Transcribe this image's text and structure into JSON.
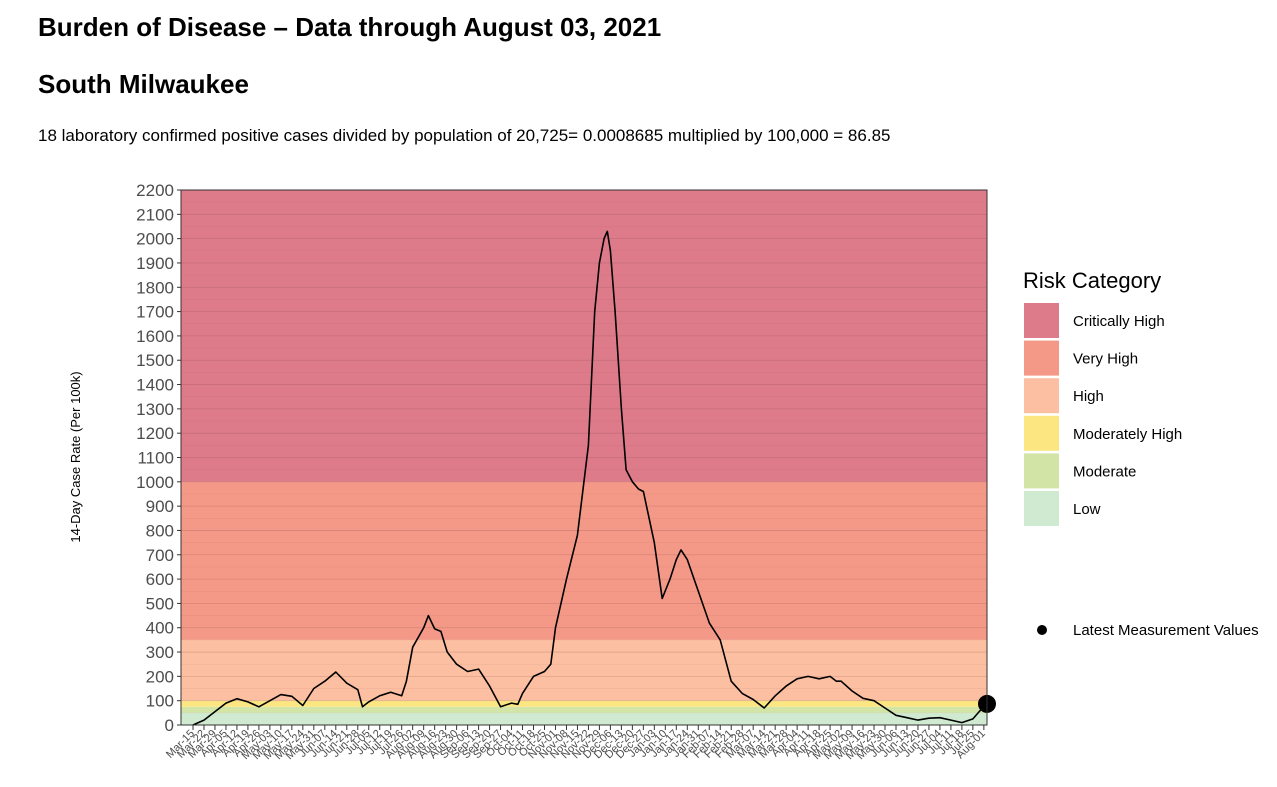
{
  "page": {
    "title": "Burden of Disease – Data through August 03, 2021",
    "subtitle": "South Milwaukee",
    "formula": "18 laboratory confirmed positive cases divided by population of 20,725= 0.0008685 multiplied by 100,000 = 86.85"
  },
  "chart_data": {
    "type": "line",
    "title": "",
    "xlabel": "",
    "ylabel": "14-Day Case Rate (Per 100k)",
    "ylim": [
      0,
      2200
    ],
    "yticks": [
      0,
      100,
      200,
      300,
      400,
      500,
      600,
      700,
      800,
      900,
      1000,
      1100,
      1200,
      1300,
      1400,
      1500,
      1600,
      1700,
      1800,
      1900,
      2000,
      2100,
      2200
    ],
    "grid": true,
    "date_range": [
      "2020-03-15",
      "2021-08-03"
    ],
    "xtick_labels": [
      "Mar-15",
      "Mar-22",
      "Mar-29",
      "Apr-05",
      "Apr-12",
      "Apr-19",
      "Apr-26",
      "May-03",
      "May-10",
      "May-17",
      "May-24",
      "May-31",
      "Jun-07",
      "Jun-14",
      "Jun-21",
      "Jun-28",
      "Jul-05",
      "Jul-12",
      "Jul-19",
      "Jul-26",
      "Aug-02",
      "Aug-09",
      "Aug-16",
      "Aug-23",
      "Aug-30",
      "Sep-06",
      "Sep-13",
      "Sep-20",
      "Sep-27",
      "Oct-04",
      "Oct-11",
      "Oct-18",
      "Oct-25",
      "Nov-01",
      "Nov-08",
      "Nov-15",
      "Nov-22",
      "Nov-29",
      "Dec-06",
      "Dec-13",
      "Dec-20",
      "Dec-27",
      "Jan-03",
      "Jan-10",
      "Jan-17",
      "Jan-24",
      "Jan-31",
      "Feb-07",
      "Feb-14",
      "Feb-21",
      "Feb-28",
      "Mar-07",
      "Mar-14",
      "Mar-21",
      "Mar-28",
      "Apr-04",
      "Apr-11",
      "Apr-18",
      "Apr-25",
      "May-02",
      "May-09",
      "May-16",
      "May-23",
      "May-30",
      "Jun-06",
      "Jun-13",
      "Jun-20",
      "Jun-27",
      "Jul-04",
      "Jul-11",
      "Jul-18",
      "Jul-25",
      "Aug-01"
    ],
    "risk_bands": [
      {
        "label": "Low",
        "min": 0,
        "max": 50,
        "color": "#cfead0"
      },
      {
        "label": "Moderate",
        "min": 50,
        "max": 75,
        "color": "#d2e4a6"
      },
      {
        "label": "Moderately High",
        "min": 75,
        "max": 100,
        "color": "#fbe682"
      },
      {
        "label": "High",
        "min": 100,
        "max": 350,
        "color": "#fcbfa1"
      },
      {
        "label": "Very High",
        "min": 350,
        "max": 1000,
        "color": "#f49987"
      },
      {
        "label": "Critically High",
        "min": 1000,
        "max": 2200,
        "color": "#de7b8b"
      }
    ],
    "legend_title": "Risk Category",
    "legend_order": [
      "Critically High",
      "Very High",
      "High",
      "Moderately High",
      "Moderate",
      "Low"
    ],
    "legend_position": "right",
    "marker_legend_label": "Latest Measurement Values",
    "latest": {
      "x": "2021-08-03",
      "y": 86.85
    },
    "series": [
      {
        "values": [
          [
            "2020-03-15",
            0
          ],
          [
            "2020-03-22",
            20
          ],
          [
            "2020-03-29",
            55
          ],
          [
            "2020-04-05",
            90
          ],
          [
            "2020-04-12",
            108
          ],
          [
            "2020-04-19",
            95
          ],
          [
            "2020-04-26",
            75
          ],
          [
            "2020-05-03",
            100
          ],
          [
            "2020-05-10",
            125
          ],
          [
            "2020-05-17",
            118
          ],
          [
            "2020-05-24",
            80
          ],
          [
            "2020-05-31",
            150
          ],
          [
            "2020-06-07",
            180
          ],
          [
            "2020-06-14",
            218
          ],
          [
            "2020-06-21",
            172
          ],
          [
            "2020-06-28",
            145
          ],
          [
            "2020-07-01",
            75
          ],
          [
            "2020-07-05",
            95
          ],
          [
            "2020-07-12",
            120
          ],
          [
            "2020-07-19",
            135
          ],
          [
            "2020-07-26",
            120
          ],
          [
            "2020-07-29",
            180
          ],
          [
            "2020-08-02",
            320
          ],
          [
            "2020-08-09",
            400
          ],
          [
            "2020-08-12",
            450
          ],
          [
            "2020-08-16",
            395
          ],
          [
            "2020-08-20",
            385
          ],
          [
            "2020-08-24",
            300
          ],
          [
            "2020-08-30",
            250
          ],
          [
            "2020-09-06",
            220
          ],
          [
            "2020-09-13",
            230
          ],
          [
            "2020-09-20",
            160
          ],
          [
            "2020-09-27",
            75
          ],
          [
            "2020-10-04",
            90
          ],
          [
            "2020-10-08",
            85
          ],
          [
            "2020-10-11",
            130
          ],
          [
            "2020-10-18",
            200
          ],
          [
            "2020-10-25",
            220
          ],
          [
            "2020-10-29",
            250
          ],
          [
            "2020-11-01",
            400
          ],
          [
            "2020-11-08",
            600
          ],
          [
            "2020-11-15",
            780
          ],
          [
            "2020-11-22",
            1150
          ],
          [
            "2020-11-26",
            1700
          ],
          [
            "2020-11-29",
            1900
          ],
          [
            "2020-12-02",
            2000
          ],
          [
            "2020-12-04",
            2030
          ],
          [
            "2020-12-06",
            1950
          ],
          [
            "2020-12-09",
            1700
          ],
          [
            "2020-12-13",
            1300
          ],
          [
            "2020-12-16",
            1050
          ],
          [
            "2020-12-20",
            1000
          ],
          [
            "2020-12-24",
            970
          ],
          [
            "2020-12-27",
            960
          ],
          [
            "2021-01-03",
            750
          ],
          [
            "2021-01-08",
            520
          ],
          [
            "2021-01-13",
            600
          ],
          [
            "2021-01-17",
            680
          ],
          [
            "2021-01-20",
            720
          ],
          [
            "2021-01-24",
            680
          ],
          [
            "2021-01-31",
            550
          ],
          [
            "2021-02-07",
            420
          ],
          [
            "2021-02-14",
            350
          ],
          [
            "2021-02-21",
            180
          ],
          [
            "2021-02-28",
            130
          ],
          [
            "2021-03-07",
            105
          ],
          [
            "2021-03-14",
            70
          ],
          [
            "2021-03-21",
            120
          ],
          [
            "2021-03-28",
            160
          ],
          [
            "2021-04-04",
            190
          ],
          [
            "2021-04-11",
            200
          ],
          [
            "2021-04-18",
            190
          ],
          [
            "2021-04-25",
            200
          ],
          [
            "2021-04-29",
            180
          ],
          [
            "2021-05-02",
            180
          ],
          [
            "2021-05-09",
            140
          ],
          [
            "2021-05-16",
            110
          ],
          [
            "2021-05-23",
            100
          ],
          [
            "2021-05-30",
            70
          ],
          [
            "2021-06-06",
            40
          ],
          [
            "2021-06-13",
            30
          ],
          [
            "2021-06-20",
            20
          ],
          [
            "2021-06-27",
            28
          ],
          [
            "2021-07-04",
            30
          ],
          [
            "2021-07-11",
            20
          ],
          [
            "2021-07-18",
            10
          ],
          [
            "2021-07-25",
            25
          ],
          [
            "2021-07-29",
            55
          ],
          [
            "2021-08-03",
            87
          ]
        ]
      }
    ]
  }
}
